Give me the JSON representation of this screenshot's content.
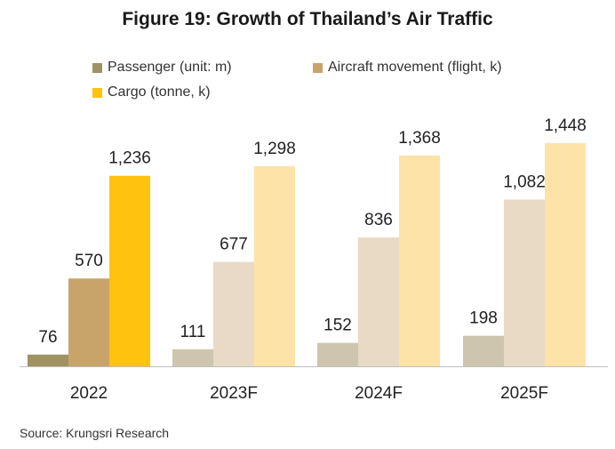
{
  "title": "Figure 19:  Growth of Thailand’s  Air Traffic",
  "source": "Source: Krungsri Research",
  "chart_data": {
    "type": "bar",
    "categories": [
      "2022",
      "2023F",
      "2024F",
      "2025F"
    ],
    "series": [
      {
        "name": "Passenger (unit: m)",
        "values": [
          76,
          111,
          152,
          198
        ],
        "labels": [
          "76",
          "111",
          "152",
          "198"
        ],
        "colors": [
          "#a09263",
          "#cdc5ae",
          "#cdc5ae",
          "#cdc5ae"
        ],
        "legend_color": "#a09263"
      },
      {
        "name": "Aircraft movement (flight, k)",
        "values": [
          570,
          677,
          836,
          1082
        ],
        "labels": [
          "570",
          "677",
          "836",
          "1,082"
        ],
        "colors": [
          "#c9a46a",
          "#e8dac4",
          "#e8dac4",
          "#e8dac4"
        ],
        "legend_color": "#c9a46a"
      },
      {
        "name": "Cargo (tonne, k)",
        "values": [
          1236,
          1298,
          1368,
          1448
        ],
        "labels": [
          "1,236",
          "1,298",
          "1,368",
          "1,448"
        ],
        "colors": [
          "#ffc20e",
          "#fde3a7",
          "#fde3a7",
          "#fde3a7"
        ],
        "legend_color": "#ffc20e"
      }
    ],
    "ylim": [
      0,
      1448
    ],
    "grid": false,
    "legend_position": "top-left"
  }
}
